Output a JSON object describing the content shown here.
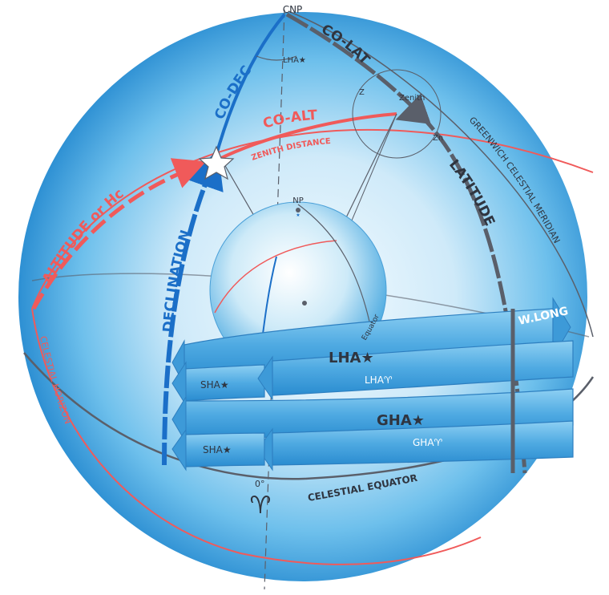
{
  "labels": {
    "cnp": "CNP",
    "co_dec": "CO-DEC",
    "co_lat": "CO-LAT",
    "lha_star_small": "LHA★",
    "co_alt": "CO-ALT",
    "zenith_distance": "ZENITH DISTANCE",
    "zenith": "Zenith",
    "z": "Z",
    "zn": "Zn",
    "greenwich_celestial_meridian": "GREENWICH CELESTIAL MERIDIAN",
    "latitude": "LATITUDE",
    "altitude_or_hc": "ALTITUDE or Hc",
    "declination": "DECLINATION",
    "np": "NP",
    "equator": "Equator",
    "w_long": "W.LONG",
    "lha_star": "LHA★",
    "lha_aries": "LHA♈",
    "sha_star_1": "SHA★",
    "gha_star": "GHA★",
    "gha_aries": "GHA♈",
    "sha_star_2": "SHA★",
    "celestial_horizon": "CELESTIAL HORIZON",
    "celestial_equator": "CELESTIAL EQUATOR",
    "zero_deg": "0°",
    "aries_symbol": "♈"
  },
  "colors": {
    "sphere_light": "#eef8ff",
    "sphere_mid": "#7cc8ee",
    "sphere_dark": "#1a86d0",
    "red": "#f05a5a",
    "blue": "#1b6fc8",
    "gray": "#5a5f6a",
    "band": "#5fb4e6",
    "band_dark": "#2d8fd2",
    "text_dark": "#2f3540"
  }
}
